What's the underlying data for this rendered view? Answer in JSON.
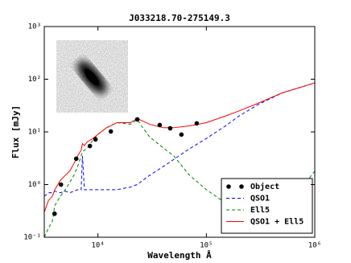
{
  "chart_data": {
    "type": "line",
    "title": "J033218.70-275149.3",
    "xlabel": "Wavelength Å",
    "ylabel": "Flux [mJy]",
    "xscale": "log",
    "yscale": "log",
    "xlim": [
      3200,
      1000000
    ],
    "ylim": [
      0.1,
      1000
    ],
    "xticks": [
      {
        "value": 10000,
        "label": "10⁴"
      },
      {
        "value": 100000,
        "label": "10⁵"
      },
      {
        "value": 1000000,
        "label": "10⁶"
      }
    ],
    "yticks": [
      {
        "value": 0.1,
        "label": "10⁻¹"
      },
      {
        "value": 1,
        "label": "10⁰"
      },
      {
        "value": 10,
        "label": "10¹"
      },
      {
        "value": 100,
        "label": "10²"
      },
      {
        "value": 1000,
        "label": "10³"
      }
    ],
    "legend": "lower right",
    "x": [
      3200,
      3500,
      3800,
      4000,
      4500,
      5000,
      5500,
      6000,
      6500,
      7000,
      7200,
      7500,
      8000,
      9000,
      10000,
      12000,
      15000,
      20000,
      23000,
      30000,
      40000,
      50000,
      70000,
      100000,
      150000,
      200000,
      300000,
      500000,
      700000,
      1000000
    ],
    "series": [
      {
        "name": "Object",
        "type": "scatter",
        "color": "#000000",
        "x": [
          3981,
          4560,
          6310,
          8430,
          9500,
          13150,
          23070,
          37150,
          46400,
          58900,
          81500
        ],
        "values": [
          0.28,
          1.0,
          3.1,
          5.4,
          7.2,
          10.2,
          17.3,
          13.5,
          11.7,
          8.9,
          14.5
        ]
      },
      {
        "name": "QSO1",
        "type": "line",
        "linestyle": "dashed",
        "color": "#0000ff",
        "values": [
          0.6,
          0.7,
          0.7,
          0.75,
          0.7,
          0.75,
          0.7,
          0.75,
          0.8,
          0.8,
          3.5,
          0.8,
          0.8,
          0.8,
          0.8,
          0.8,
          0.8,
          0.9,
          1.0,
          1.5,
          2.2,
          3.0,
          4.8,
          7.5,
          13,
          20,
          33,
          55,
          68,
          85
        ]
      },
      {
        "name": "Ell5",
        "type": "line",
        "linestyle": "dashed",
        "color": "#008000",
        "values": [
          0.1,
          0.15,
          0.2,
          0.4,
          0.6,
          0.8,
          1.1,
          1.5,
          2.2,
          3.5,
          4.2,
          4.5,
          5,
          7,
          9,
          12,
          15,
          14,
          17,
          8,
          5,
          3.5,
          1.5,
          0.8,
          0.45,
          0.3,
          0.25,
          0.3,
          0.7,
          1.8
        ]
      },
      {
        "name": "QSO1 + Ell5",
        "type": "line",
        "linestyle": "solid",
        "color": "#ff0000",
        "values": [
          0.3,
          0.5,
          0.6,
          0.8,
          1.2,
          1.5,
          1.8,
          2.5,
          3.5,
          4.5,
          6,
          5.5,
          6.5,
          7.5,
          9,
          12,
          15,
          15,
          18,
          14,
          12,
          12,
          13,
          15,
          20,
          25,
          35,
          55,
          68,
          85
        ]
      }
    ]
  }
}
